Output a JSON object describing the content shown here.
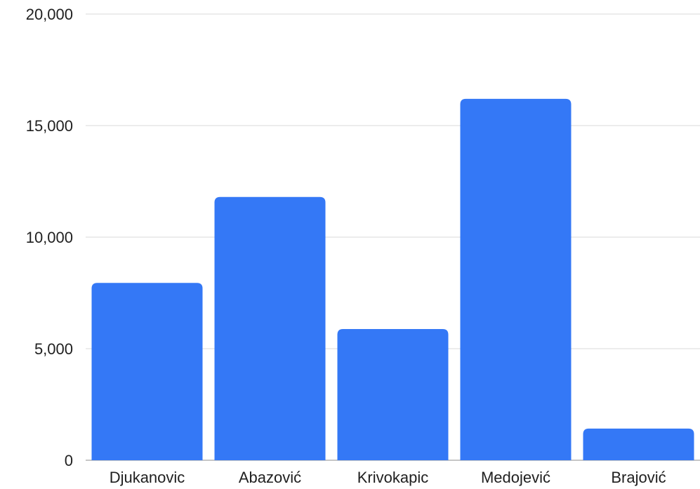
{
  "chart_data": {
    "type": "bar",
    "title": "",
    "xlabel": "",
    "ylabel": "",
    "categories": [
      "Djukanovic",
      "Abazović",
      "Krivokapic",
      "Medojević",
      "Brajović"
    ],
    "values": [
      7950,
      11800,
      5880,
      16200,
      1420
    ],
    "ylim": [
      0,
      20000
    ],
    "yticks": [
      0,
      5000,
      10000,
      15000,
      20000
    ],
    "ytick_labels": [
      "0",
      "5,000",
      "10,000",
      "15,000",
      "20,000"
    ],
    "grid": true,
    "legend": "none",
    "bar_color": "#3478f6"
  }
}
